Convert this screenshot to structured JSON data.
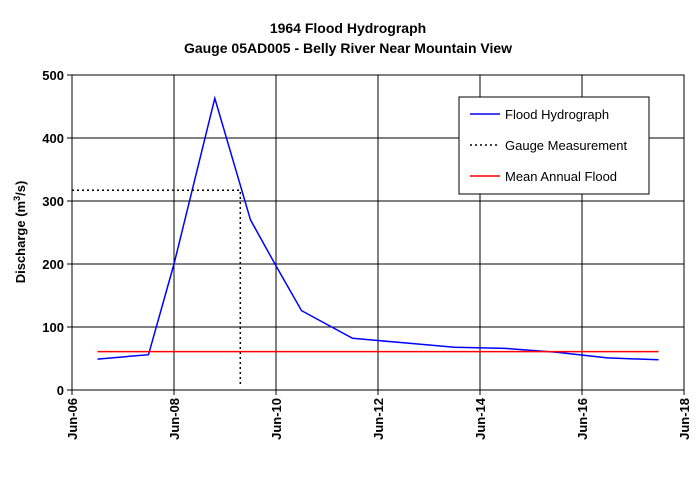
{
  "chart_data": {
    "type": "line",
    "title": "1964 Flood Hydrograph",
    "subtitle": "Gauge 05AD005 - Belly River Near Mountain View",
    "ylabel": "Discharge (m",
    "ylabel_sup": "3",
    "ylabel_end": "/s)",
    "xlabel": "",
    "ylim": [
      0,
      500
    ],
    "yticks": [
      0,
      100,
      200,
      300,
      400,
      500
    ],
    "xlim": [
      6,
      18
    ],
    "xticks": [
      {
        "value": 6,
        "label": "Jun-06"
      },
      {
        "value": 8,
        "label": "Jun-08"
      },
      {
        "value": 10,
        "label": "Jun-10"
      },
      {
        "value": 12,
        "label": "Jun-12"
      },
      {
        "value": 14,
        "label": "Jun-14"
      },
      {
        "value": 16,
        "label": "Jun-16"
      },
      {
        "value": 18,
        "label": "Jun-18"
      }
    ],
    "grid": true,
    "legend_position": "top-right",
    "series": [
      {
        "name": "Flood Hydrograph",
        "color": "#0000ff",
        "style": "solid",
        "x": [
          6.5,
          7.5,
          8.0,
          8.8,
          9.5,
          10.0,
          10.5,
          11.5,
          12.5,
          13.5,
          14.5,
          15.5,
          16.5,
          17.5
        ],
        "y": [
          49,
          56,
          200,
          463,
          270,
          197,
          126,
          82,
          75,
          68,
          66,
          60,
          51,
          48
        ]
      },
      {
        "name": "Gauge Measurement",
        "color": "#000000",
        "style": "dotted",
        "x": [
          6.0,
          9.3,
          9.3
        ],
        "y": [
          317,
          317,
          5
        ]
      },
      {
        "name": "Mean Annual Flood",
        "color": "#ff0000",
        "style": "solid",
        "x": [
          6.5,
          17.5
        ],
        "y": [
          61,
          61
        ]
      }
    ]
  }
}
